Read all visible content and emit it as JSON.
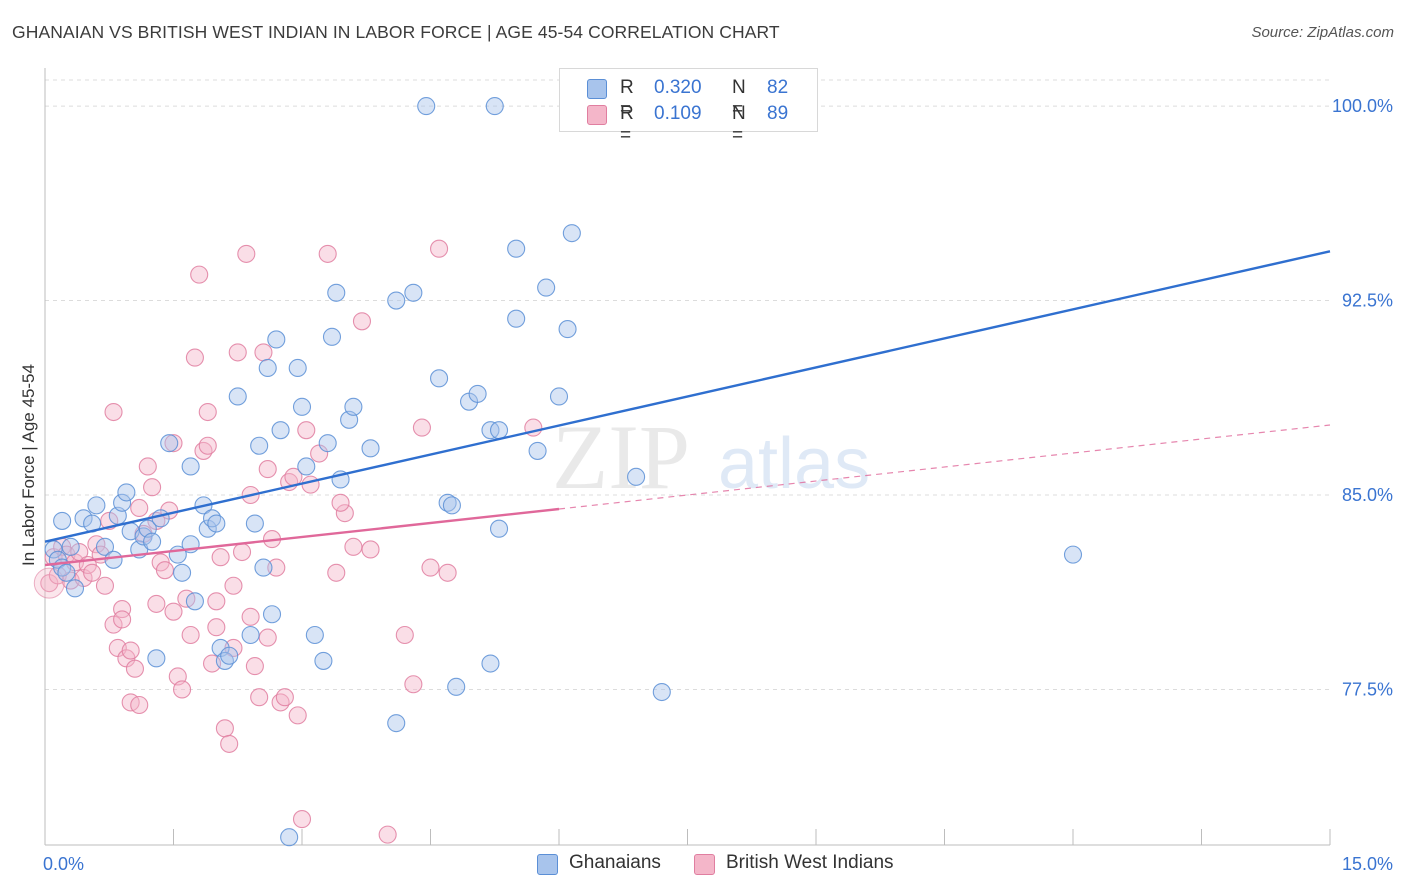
{
  "title": "GHANAIAN VS BRITISH WEST INDIAN IN LABOR FORCE | AGE 45-54 CORRELATION CHART",
  "source": "Source: ZipAtlas.com",
  "watermark": {
    "zip": "ZIP",
    "atlas": "atlas"
  },
  "legend": {
    "r_label": "R =",
    "n_label": "N =",
    "series": [
      {
        "name": "Ghanaians",
        "r": "0.320",
        "n": "82"
      },
      {
        "name": "British West Indians",
        "r": "0.109",
        "n": "89"
      }
    ]
  },
  "colors": {
    "blue_fill": "#a8c4ec",
    "blue_stroke": "#5b8fd6",
    "blue_line": "#2f6fcf",
    "pink_fill": "#f4b6c9",
    "pink_stroke": "#e07ea0",
    "pink_line": "#e0689a",
    "axis_text": "#3a74d1",
    "grid": "#dcdcdc"
  },
  "chart_data": {
    "type": "scatter",
    "title": "GHANAIAN VS BRITISH WEST INDIAN IN LABOR FORCE | AGE 45-54 CORRELATION CHART",
    "xlabel": "",
    "ylabel": "In Labor Force | Age 45-54",
    "xlim": [
      0,
      15
    ],
    "ylim": [
      71.5,
      101.2
    ],
    "x_tick_labels": [
      "0.0%",
      "15.0%"
    ],
    "y_ticks": [
      77.5,
      85.0,
      92.5,
      100.0
    ],
    "y_tick_labels": [
      "77.5%",
      "85.0%",
      "92.5%",
      "100.0%"
    ],
    "grid": true,
    "series": [
      {
        "name": "Ghanaians",
        "r": 0.32,
        "n": 82,
        "trend": {
          "x": [
            0,
            15
          ],
          "y": [
            83.2,
            94.4
          ],
          "style": "solid",
          "dashed_from": null
        },
        "points": [
          [
            0.1,
            82.9
          ],
          [
            0.15,
            82.5
          ],
          [
            0.2,
            82.2
          ],
          [
            0.25,
            82.0
          ],
          [
            0.3,
            83.0
          ],
          [
            0.35,
            81.4
          ],
          [
            0.2,
            84.0
          ],
          [
            0.45,
            84.1
          ],
          [
            0.55,
            83.9
          ],
          [
            0.6,
            84.6
          ],
          [
            0.7,
            83.0
          ],
          [
            0.8,
            82.5
          ],
          [
            0.85,
            84.2
          ],
          [
            0.9,
            84.7
          ],
          [
            0.95,
            85.1
          ],
          [
            1.0,
            83.6
          ],
          [
            1.1,
            82.9
          ],
          [
            1.15,
            83.4
          ],
          [
            1.2,
            83.7
          ],
          [
            1.25,
            83.2
          ],
          [
            1.3,
            78.7
          ],
          [
            1.35,
            84.1
          ],
          [
            1.45,
            87.0
          ],
          [
            1.55,
            82.7
          ],
          [
            1.6,
            82.0
          ],
          [
            1.7,
            83.1
          ],
          [
            1.7,
            86.1
          ],
          [
            1.75,
            80.9
          ],
          [
            1.85,
            84.6
          ],
          [
            1.9,
            83.7
          ],
          [
            1.95,
            84.1
          ],
          [
            2.0,
            83.9
          ],
          [
            2.05,
            79.1
          ],
          [
            2.1,
            78.6
          ],
          [
            2.15,
            78.8
          ],
          [
            2.25,
            88.8
          ],
          [
            2.4,
            79.6
          ],
          [
            2.45,
            83.9
          ],
          [
            2.5,
            86.9
          ],
          [
            2.55,
            82.2
          ],
          [
            2.6,
            89.9
          ],
          [
            2.65,
            80.4
          ],
          [
            2.7,
            91.0
          ],
          [
            2.75,
            87.5
          ],
          [
            2.85,
            71.8
          ],
          [
            2.95,
            89.9
          ],
          [
            3.0,
            88.4
          ],
          [
            3.05,
            86.1
          ],
          [
            3.15,
            79.6
          ],
          [
            3.25,
            78.6
          ],
          [
            3.3,
            87.0
          ],
          [
            3.35,
            91.1
          ],
          [
            3.4,
            92.8
          ],
          [
            3.45,
            85.6
          ],
          [
            3.55,
            87.9
          ],
          [
            3.6,
            88.4
          ],
          [
            3.8,
            86.8
          ],
          [
            4.1,
            92.5
          ],
          [
            4.3,
            92.8
          ],
          [
            4.1,
            76.2
          ],
          [
            4.45,
            100.0
          ],
          [
            4.6,
            89.5
          ],
          [
            4.7,
            84.7
          ],
          [
            4.75,
            84.6
          ],
          [
            4.8,
            77.6
          ],
          [
            4.95,
            88.6
          ],
          [
            5.05,
            88.9
          ],
          [
            5.2,
            78.5
          ],
          [
            5.3,
            83.7
          ],
          [
            5.2,
            87.5
          ],
          [
            5.3,
            87.5
          ],
          [
            5.25,
            100.0
          ],
          [
            5.5,
            91.8
          ],
          [
            5.5,
            94.5
          ],
          [
            5.75,
            86.7
          ],
          [
            5.85,
            93.0
          ],
          [
            6.0,
            88.8
          ],
          [
            6.1,
            91.4
          ],
          [
            6.15,
            95.1
          ],
          [
            6.9,
            85.7
          ],
          [
            7.2,
            77.4
          ],
          [
            12.0,
            82.7
          ]
        ]
      },
      {
        "name": "British West Indians",
        "r": 0.109,
        "n": 89,
        "trend": {
          "x": [
            0,
            15
          ],
          "y": [
            82.3,
            87.7
          ],
          "style": "solid",
          "dashed_from": 6.0
        },
        "points": [
          [
            0.05,
            81.6
          ],
          [
            0.1,
            82.6
          ],
          [
            0.15,
            81.9
          ],
          [
            0.2,
            83.0
          ],
          [
            0.25,
            82.7
          ],
          [
            0.3,
            81.7
          ],
          [
            0.35,
            82.4
          ],
          [
            0.4,
            82.8
          ],
          [
            0.45,
            81.8
          ],
          [
            0.5,
            82.3
          ],
          [
            0.55,
            82.0
          ],
          [
            0.6,
            83.1
          ],
          [
            0.65,
            82.7
          ],
          [
            0.7,
            81.5
          ],
          [
            0.75,
            84.0
          ],
          [
            0.8,
            80.0
          ],
          [
            0.85,
            79.1
          ],
          [
            0.9,
            80.6
          ],
          [
            0.95,
            78.7
          ],
          [
            1.0,
            79.0
          ],
          [
            1.05,
            78.3
          ],
          [
            1.1,
            84.5
          ],
          [
            1.15,
            83.5
          ],
          [
            1.2,
            86.1
          ],
          [
            1.25,
            85.3
          ],
          [
            1.3,
            84.0
          ],
          [
            1.35,
            82.4
          ],
          [
            1.4,
            82.1
          ],
          [
            1.45,
            84.4
          ],
          [
            1.5,
            87.0
          ],
          [
            1.55,
            78.0
          ],
          [
            1.6,
            77.5
          ],
          [
            1.65,
            81.0
          ],
          [
            1.7,
            79.6
          ],
          [
            1.75,
            90.3
          ],
          [
            1.8,
            93.5
          ],
          [
            1.85,
            86.7
          ],
          [
            1.9,
            86.9
          ],
          [
            1.95,
            78.5
          ],
          [
            2.0,
            80.9
          ],
          [
            2.05,
            82.6
          ],
          [
            2.1,
            76.0
          ],
          [
            2.15,
            75.4
          ],
          [
            2.2,
            79.1
          ],
          [
            2.25,
            90.5
          ],
          [
            2.3,
            82.8
          ],
          [
            2.35,
            94.3
          ],
          [
            2.4,
            80.3
          ],
          [
            2.45,
            78.4
          ],
          [
            2.5,
            77.2
          ],
          [
            2.55,
            90.5
          ],
          [
            2.6,
            86.0
          ],
          [
            2.65,
            83.3
          ],
          [
            2.7,
            82.2
          ],
          [
            2.75,
            77.0
          ],
          [
            2.8,
            77.2
          ],
          [
            2.85,
            85.5
          ],
          [
            2.9,
            85.7
          ],
          [
            2.95,
            76.5
          ],
          [
            3.0,
            72.5
          ],
          [
            3.05,
            87.5
          ],
          [
            3.1,
            85.4
          ],
          [
            3.2,
            86.6
          ],
          [
            3.3,
            94.3
          ],
          [
            3.4,
            82.0
          ],
          [
            3.5,
            84.3
          ],
          [
            3.6,
            83.0
          ],
          [
            3.7,
            91.7
          ],
          [
            3.8,
            82.9
          ],
          [
            4.0,
            71.9
          ],
          [
            4.2,
            79.6
          ],
          [
            4.3,
            77.7
          ],
          [
            4.4,
            87.6
          ],
          [
            4.5,
            82.2
          ],
          [
            4.6,
            94.5
          ],
          [
            4.7,
            82.0
          ],
          [
            0.8,
            88.2
          ],
          [
            0.9,
            80.2
          ],
          [
            1.0,
            77.0
          ],
          [
            1.1,
            76.9
          ],
          [
            1.3,
            80.8
          ],
          [
            1.5,
            80.5
          ],
          [
            1.9,
            88.2
          ],
          [
            2.0,
            79.9
          ],
          [
            2.2,
            81.5
          ],
          [
            2.4,
            85.0
          ],
          [
            2.6,
            79.5
          ],
          [
            3.45,
            84.7
          ],
          [
            5.7,
            87.6
          ]
        ]
      }
    ]
  }
}
